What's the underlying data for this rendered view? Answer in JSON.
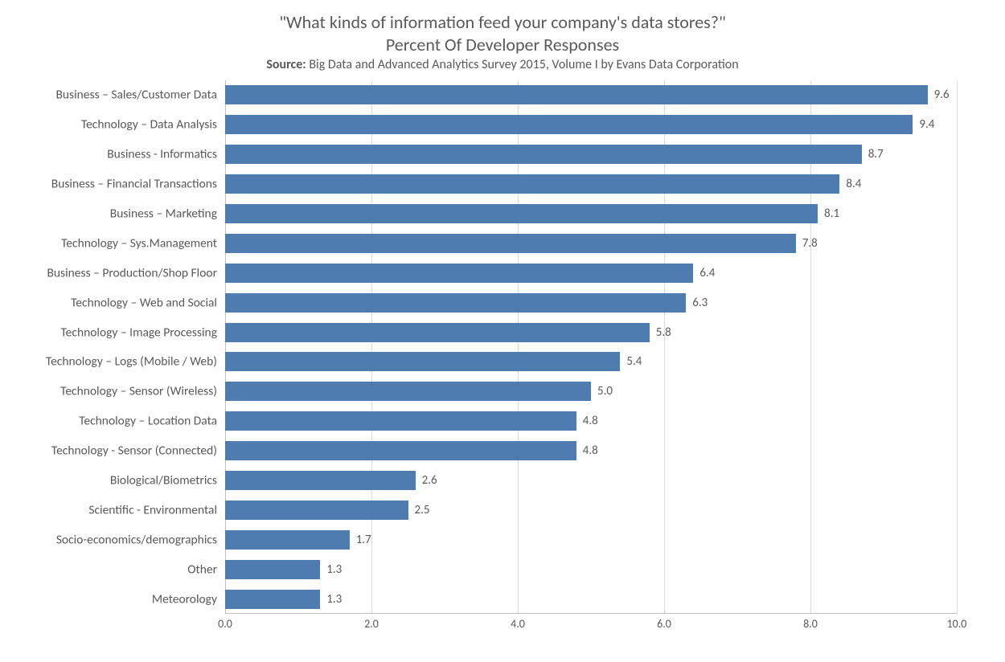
{
  "chart": {
    "type": "bar-horizontal",
    "title_line1": "\"What kinds of information feed your company's data stores?\"",
    "title_line2": "Percent Of Developer Responses",
    "title_fontsize": 22,
    "source_prefix": "Source:",
    "source_text": " Big Data and Advanced Analytics Survey 2015, Volume I by Evans Data Corporation",
    "source_fontsize": 16,
    "background_color": "#ffffff",
    "text_color": "#595959",
    "bar_color": "#4f7cb0",
    "grid_color": "#d9d9d9",
    "axis_line_color": "#bfbfbf",
    "xlim": [
      0.0,
      10.0
    ],
    "xtick_step": 2.0,
    "xtick_labels": [
      "0.0",
      "2.0",
      "4.0",
      "6.0",
      "8.0",
      "10.0"
    ],
    "tick_fontsize": 14,
    "category_fontsize": 15.5,
    "value_fontsize": 15,
    "bar_gap_ratio": 0.35,
    "categories": [
      "Business – Sales/Customer Data",
      "Technology – Data Analysis",
      "Business - Informatics",
      "Business – Financial Transactions",
      "Business – Marketing",
      "Technology – Sys.Management",
      "Business – Production/Shop Floor",
      "Technology – Web and Social",
      "Technology – Image Processing",
      "Technology –  Logs (Mobile / Web)",
      "Technology – Sensor (Wireless)",
      "Technology – Location Data",
      "Technology - Sensor (Connected)",
      "Biological/Biometrics",
      "Scientific - Environmental",
      "Socio-economics/demographics",
      "Other",
      "Meteorology"
    ],
    "values": [
      9.6,
      9.4,
      8.7,
      8.4,
      8.1,
      7.8,
      6.4,
      6.3,
      5.8,
      5.4,
      5.0,
      4.8,
      4.8,
      2.6,
      2.5,
      1.7,
      1.3,
      1.3
    ],
    "value_labels": [
      "9.6",
      "9.4",
      "8.7",
      "8.4",
      "8.1",
      "7.8",
      "6.4",
      "6.3",
      "5.8",
      "5.4",
      "5.0",
      "4.8",
      "4.8",
      "2.6",
      "2.5",
      "1.7",
      "1.3",
      "1.3"
    ]
  }
}
